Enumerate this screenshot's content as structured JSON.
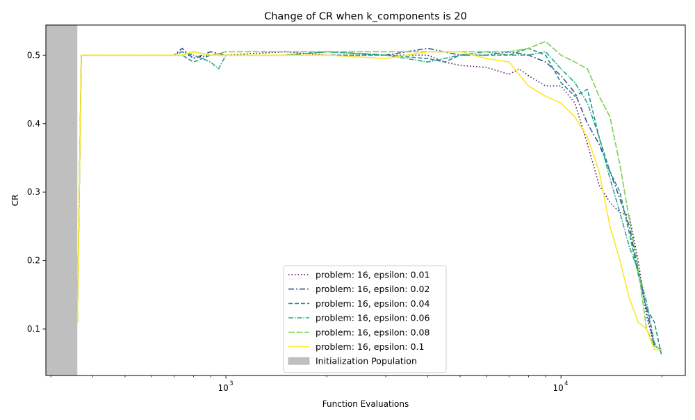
{
  "chart_data": {
    "type": "line",
    "title": "Change of CR when k_components is 20",
    "xlabel": "Function Evaluations",
    "ylabel": "CR",
    "xscale": "log",
    "xlim": [
      290,
      23500
    ],
    "ylim": [
      0.032,
      0.544
    ],
    "x_major_ticks": [
      {
        "value": 1000,
        "label": "10",
        "exp": "3"
      },
      {
        "value": 10000,
        "label": "10",
        "exp": "4"
      }
    ],
    "x_minor_ticks": [
      300,
      400,
      500,
      600,
      700,
      800,
      900,
      2000,
      3000,
      4000,
      5000,
      6000,
      7000,
      8000,
      9000,
      20000
    ],
    "y_ticks": [
      0.1,
      0.2,
      0.3,
      0.4,
      0.5
    ],
    "y_tick_labels": [
      "0.1",
      "0.2",
      "0.3",
      "0.4",
      "0.5"
    ],
    "grid": false,
    "legend_position": "lower-center",
    "shaded_region": {
      "x_start": 290,
      "x_end": 360,
      "label": "Initialization Population",
      "color": "#bfbfbf"
    },
    "series": [
      {
        "name": "problem: 16, epsilon: 0.01",
        "color": "#440154",
        "dash": "1.5,3",
        "points": [
          [
            360,
            0.11
          ],
          [
            370,
            0.5
          ],
          [
            700,
            0.5
          ],
          [
            740,
            0.505
          ],
          [
            800,
            0.496
          ],
          [
            900,
            0.5
          ],
          [
            1000,
            0.5
          ],
          [
            1500,
            0.505
          ],
          [
            2000,
            0.5
          ],
          [
            3000,
            0.5
          ],
          [
            4000,
            0.5
          ],
          [
            4500,
            0.49
          ],
          [
            5000,
            0.485
          ],
          [
            6000,
            0.482
          ],
          [
            7000,
            0.472
          ],
          [
            7500,
            0.48
          ],
          [
            8000,
            0.47
          ],
          [
            9000,
            0.455
          ],
          [
            10000,
            0.455
          ],
          [
            11000,
            0.43
          ],
          [
            12000,
            0.37
          ],
          [
            13000,
            0.31
          ],
          [
            14000,
            0.285
          ],
          [
            15000,
            0.27
          ],
          [
            16000,
            0.265
          ],
          [
            17000,
            0.2
          ],
          [
            18000,
            0.12
          ],
          [
            19000,
            0.075
          ],
          [
            20000,
            0.07
          ]
        ]
      },
      {
        "name": "problem: 16, epsilon: 0.02",
        "color": "#3b528b",
        "dash": "8,3,2,3",
        "points": [
          [
            360,
            0.11
          ],
          [
            370,
            0.5
          ],
          [
            700,
            0.5
          ],
          [
            740,
            0.51
          ],
          [
            800,
            0.495
          ],
          [
            900,
            0.505
          ],
          [
            1000,
            0.5
          ],
          [
            1500,
            0.5
          ],
          [
            2000,
            0.505
          ],
          [
            3000,
            0.5
          ],
          [
            4000,
            0.51
          ],
          [
            5000,
            0.5
          ],
          [
            6000,
            0.5
          ],
          [
            7000,
            0.505
          ],
          [
            8000,
            0.5
          ],
          [
            9000,
            0.49
          ],
          [
            10000,
            0.47
          ],
          [
            11000,
            0.445
          ],
          [
            12000,
            0.4
          ],
          [
            13000,
            0.37
          ],
          [
            14000,
            0.33
          ],
          [
            15000,
            0.29
          ],
          [
            16000,
            0.25
          ],
          [
            17000,
            0.185
          ],
          [
            18000,
            0.13
          ],
          [
            19000,
            0.075
          ],
          [
            20000,
            0.07
          ]
        ]
      },
      {
        "name": "problem: 16, epsilon: 0.04",
        "color": "#21918c",
        "dash": "6,3",
        "points": [
          [
            360,
            0.11
          ],
          [
            370,
            0.5
          ],
          [
            700,
            0.5
          ],
          [
            740,
            0.5
          ],
          [
            800,
            0.49
          ],
          [
            900,
            0.5
          ],
          [
            1000,
            0.5
          ],
          [
            1500,
            0.5
          ],
          [
            2000,
            0.5
          ],
          [
            3000,
            0.5
          ],
          [
            4000,
            0.495
          ],
          [
            4500,
            0.49
          ],
          [
            5000,
            0.5
          ],
          [
            6000,
            0.5
          ],
          [
            7000,
            0.5
          ],
          [
            8000,
            0.51
          ],
          [
            9000,
            0.5
          ],
          [
            10000,
            0.46
          ],
          [
            11000,
            0.44
          ],
          [
            12000,
            0.45
          ],
          [
            13000,
            0.38
          ],
          [
            14000,
            0.33
          ],
          [
            15000,
            0.3
          ],
          [
            16000,
            0.24
          ],
          [
            17000,
            0.18
          ],
          [
            18000,
            0.13
          ],
          [
            19000,
            0.11
          ],
          [
            20000,
            0.06
          ]
        ]
      },
      {
        "name": "problem: 16, epsilon: 0.06",
        "color": "#22a884",
        "dash": "7,2,1.5,2",
        "points": [
          [
            360,
            0.11
          ],
          [
            370,
            0.5
          ],
          [
            700,
            0.5
          ],
          [
            740,
            0.505
          ],
          [
            800,
            0.5
          ],
          [
            900,
            0.49
          ],
          [
            950,
            0.48
          ],
          [
            1000,
            0.5
          ],
          [
            1500,
            0.5
          ],
          [
            2000,
            0.505
          ],
          [
            3000,
            0.5
          ],
          [
            4000,
            0.49
          ],
          [
            5000,
            0.5
          ],
          [
            6000,
            0.505
          ],
          [
            7000,
            0.5
          ],
          [
            8000,
            0.5
          ],
          [
            9000,
            0.505
          ],
          [
            10000,
            0.48
          ],
          [
            11000,
            0.46
          ],
          [
            12000,
            0.43
          ],
          [
            13000,
            0.38
          ],
          [
            14000,
            0.32
          ],
          [
            15000,
            0.27
          ],
          [
            16000,
            0.22
          ],
          [
            17000,
            0.185
          ],
          [
            18000,
            0.14
          ],
          [
            19000,
            0.08
          ],
          [
            20000,
            0.065
          ]
        ]
      },
      {
        "name": "problem: 16, epsilon: 0.08",
        "color": "#7ad151",
        "dash": "9,2.5",
        "points": [
          [
            360,
            0.11
          ],
          [
            370,
            0.5
          ],
          [
            700,
            0.5
          ],
          [
            740,
            0.5
          ],
          [
            800,
            0.505
          ],
          [
            900,
            0.5
          ],
          [
            1000,
            0.505
          ],
          [
            1500,
            0.505
          ],
          [
            2000,
            0.505
          ],
          [
            3000,
            0.505
          ],
          [
            4000,
            0.505
          ],
          [
            5000,
            0.505
          ],
          [
            6000,
            0.505
          ],
          [
            7000,
            0.505
          ],
          [
            8000,
            0.51
          ],
          [
            9000,
            0.52
          ],
          [
            10000,
            0.5
          ],
          [
            11000,
            0.49
          ],
          [
            12000,
            0.48
          ],
          [
            13000,
            0.44
          ],
          [
            14000,
            0.41
          ],
          [
            15000,
            0.34
          ],
          [
            16000,
            0.26
          ],
          [
            17000,
            0.19
          ],
          [
            18000,
            0.1
          ],
          [
            19000,
            0.075
          ],
          [
            20000,
            0.07
          ]
        ]
      },
      {
        "name": "problem: 16, epsilon: 0.1",
        "color": "#fde725",
        "dash": "",
        "points": [
          [
            360,
            0.11
          ],
          [
            370,
            0.5
          ],
          [
            700,
            0.5
          ],
          [
            740,
            0.5
          ],
          [
            800,
            0.505
          ],
          [
            900,
            0.5
          ],
          [
            1000,
            0.5
          ],
          [
            1500,
            0.5
          ],
          [
            2000,
            0.5
          ],
          [
            3000,
            0.495
          ],
          [
            4000,
            0.505
          ],
          [
            5000,
            0.505
          ],
          [
            6000,
            0.495
          ],
          [
            7000,
            0.49
          ],
          [
            8000,
            0.455
          ],
          [
            9000,
            0.44
          ],
          [
            10000,
            0.43
          ],
          [
            11000,
            0.41
          ],
          [
            12000,
            0.38
          ],
          [
            13000,
            0.33
          ],
          [
            14000,
            0.25
          ],
          [
            15000,
            0.2
          ],
          [
            16000,
            0.145
          ],
          [
            17000,
            0.11
          ],
          [
            18000,
            0.1
          ],
          [
            19000,
            0.07
          ],
          [
            20000,
            0.07
          ]
        ]
      }
    ]
  }
}
